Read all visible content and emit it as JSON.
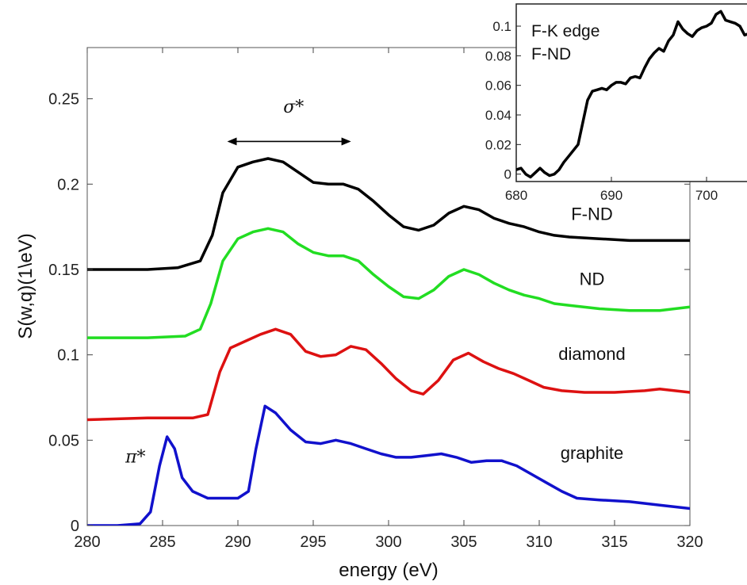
{
  "chart_data": [
    {
      "type": "line",
      "title": "",
      "xlabel": "energy (eV)",
      "ylabel": "S(w,q)(1\\eV)",
      "xlim": [
        280,
        320
      ],
      "ylim": [
        0,
        0.28
      ],
      "xticks": [
        280,
        285,
        290,
        295,
        300,
        305,
        310,
        315,
        320
      ],
      "yticks": [
        0,
        0.05,
        0.1,
        0.15,
        0.2,
        0.25
      ],
      "ytick_labels": [
        "0",
        "0.05",
        "0.1",
        "0.15",
        "0.2",
        "0.25"
      ],
      "grid": false,
      "series": [
        {
          "name": "F-ND",
          "color": "#000000",
          "points": [
            [
              280,
              0.15
            ],
            [
              284,
              0.15
            ],
            [
              286,
              0.151
            ],
            [
              287.5,
              0.155
            ],
            [
              288.3,
              0.17
            ],
            [
              289,
              0.195
            ],
            [
              290,
              0.21
            ],
            [
              291,
              0.213
            ],
            [
              292,
              0.215
            ],
            [
              293,
              0.213
            ],
            [
              294,
              0.207
            ],
            [
              295,
              0.201
            ],
            [
              296,
              0.2
            ],
            [
              297,
              0.2
            ],
            [
              298,
              0.197
            ],
            [
              299,
              0.19
            ],
            [
              300,
              0.182
            ],
            [
              301,
              0.175
            ],
            [
              302,
              0.173
            ],
            [
              303,
              0.176
            ],
            [
              304,
              0.183
            ],
            [
              305,
              0.187
            ],
            [
              306,
              0.185
            ],
            [
              307,
              0.18
            ],
            [
              308,
              0.177
            ],
            [
              309,
              0.175
            ],
            [
              310,
              0.172
            ],
            [
              311,
              0.17
            ],
            [
              312,
              0.169
            ],
            [
              314,
              0.168
            ],
            [
              316,
              0.167
            ],
            [
              318,
              0.167
            ],
            [
              320,
              0.167
            ]
          ]
        },
        {
          "name": "ND",
          "color": "#22dd22",
          "points": [
            [
              280,
              0.11
            ],
            [
              284,
              0.11
            ],
            [
              286.5,
              0.111
            ],
            [
              287.5,
              0.115
            ],
            [
              288.2,
              0.13
            ],
            [
              289,
              0.155
            ],
            [
              290,
              0.168
            ],
            [
              291,
              0.172
            ],
            [
              292,
              0.174
            ],
            [
              293,
              0.172
            ],
            [
              294,
              0.165
            ],
            [
              295,
              0.16
            ],
            [
              296,
              0.158
            ],
            [
              297,
              0.158
            ],
            [
              298,
              0.155
            ],
            [
              299,
              0.147
            ],
            [
              300,
              0.14
            ],
            [
              301,
              0.134
            ],
            [
              302,
              0.133
            ],
            [
              303,
              0.138
            ],
            [
              304,
              0.146
            ],
            [
              305,
              0.15
            ],
            [
              306,
              0.147
            ],
            [
              307,
              0.142
            ],
            [
              308,
              0.138
            ],
            [
              309,
              0.135
            ],
            [
              310,
              0.133
            ],
            [
              311,
              0.13
            ],
            [
              312,
              0.129
            ],
            [
              314,
              0.127
            ],
            [
              316,
              0.126
            ],
            [
              318,
              0.126
            ],
            [
              320,
              0.128
            ]
          ]
        },
        {
          "name": "diamond",
          "color": "#dd1111",
          "points": [
            [
              280,
              0.062
            ],
            [
              284,
              0.063
            ],
            [
              287,
              0.063
            ],
            [
              288,
              0.065
            ],
            [
              288.8,
              0.09
            ],
            [
              289.5,
              0.104
            ],
            [
              290.5,
              0.108
            ],
            [
              291.5,
              0.112
            ],
            [
              292.5,
              0.115
            ],
            [
              293.5,
              0.112
            ],
            [
              294.5,
              0.102
            ],
            [
              295.5,
              0.099
            ],
            [
              296.5,
              0.1
            ],
            [
              297.5,
              0.105
            ],
            [
              298.5,
              0.103
            ],
            [
              299.5,
              0.095
            ],
            [
              300.5,
              0.086
            ],
            [
              301.5,
              0.079
            ],
            [
              302.3,
              0.077
            ],
            [
              303.3,
              0.085
            ],
            [
              304.3,
              0.097
            ],
            [
              305.3,
              0.101
            ],
            [
              306.3,
              0.096
            ],
            [
              307.3,
              0.092
            ],
            [
              308.3,
              0.089
            ],
            [
              309.3,
              0.085
            ],
            [
              310.3,
              0.081
            ],
            [
              311.5,
              0.079
            ],
            [
              313,
              0.078
            ],
            [
              315,
              0.078
            ],
            [
              317,
              0.079
            ],
            [
              318,
              0.08
            ],
            [
              320,
              0.078
            ]
          ]
        },
        {
          "name": "graphite",
          "color": "#1111cc",
          "points": [
            [
              280,
              0
            ],
            [
              282,
              0
            ],
            [
              283.5,
              0.001
            ],
            [
              284.2,
              0.008
            ],
            [
              284.8,
              0.035
            ],
            [
              285.3,
              0.052
            ],
            [
              285.8,
              0.045
            ],
            [
              286.3,
              0.028
            ],
            [
              287,
              0.02
            ],
            [
              288,
              0.016
            ],
            [
              289,
              0.016
            ],
            [
              290,
              0.016
            ],
            [
              290.7,
              0.02
            ],
            [
              291.2,
              0.045
            ],
            [
              291.8,
              0.07
            ],
            [
              292.5,
              0.066
            ],
            [
              293.5,
              0.056
            ],
            [
              294.5,
              0.049
            ],
            [
              295.5,
              0.048
            ],
            [
              296.5,
              0.05
            ],
            [
              297.5,
              0.048
            ],
            [
              298.5,
              0.045
            ],
            [
              299.5,
              0.042
            ],
            [
              300.5,
              0.04
            ],
            [
              301.5,
              0.04
            ],
            [
              302.5,
              0.041
            ],
            [
              303.5,
              0.042
            ],
            [
              304.5,
              0.04
            ],
            [
              305.5,
              0.037
            ],
            [
              306.5,
              0.038
            ],
            [
              307.5,
              0.038
            ],
            [
              308.5,
              0.035
            ],
            [
              309.5,
              0.03
            ],
            [
              310.5,
              0.025
            ],
            [
              311.5,
              0.02
            ],
            [
              312.5,
              0.016
            ],
            [
              314,
              0.015
            ],
            [
              316,
              0.014
            ],
            [
              318,
              0.012
            ],
            [
              320,
              0.01
            ]
          ]
        }
      ],
      "series_labels": [
        {
          "text": "F-ND",
          "x": 313.5,
          "y": 0.179
        },
        {
          "text": "ND",
          "x": 313.5,
          "y": 0.141
        },
        {
          "text": "diamond",
          "x": 313.5,
          "y": 0.097
        },
        {
          "text": "graphite",
          "x": 313.5,
          "y": 0.039
        }
      ],
      "annotations": [
        {
          "text": "σ*",
          "x": 293.7,
          "y": 0.242
        },
        {
          "text": "π*",
          "x": 283.2,
          "y": 0.037
        }
      ],
      "arrow": {
        "x_start": 289.4,
        "x_end": 297.4,
        "y": 0.225
      }
    },
    {
      "type": "line",
      "title": "",
      "xlabel": "",
      "ylabel": "",
      "xlim": [
        680,
        705
      ],
      "ylim": [
        -0.005,
        0.115
      ],
      "xticks": [
        680,
        690,
        700
      ],
      "xtick_labels": [
        "680",
        "690",
        "700"
      ],
      "yticks": [
        0,
        0.02,
        0.04,
        0.06,
        0.08,
        0.1
      ],
      "ytick_labels": [
        "0",
        "0.02",
        "0.04",
        "0.06",
        "0.08",
        "0.1"
      ],
      "text_lines": [
        "F-K edge",
        "F-ND"
      ],
      "series": [
        {
          "name": "F-ND",
          "color": "#000000",
          "points": [
            [
              680,
              0.003
            ],
            [
              680.5,
              0.004
            ],
            [
              681,
              0
            ],
            [
              681.5,
              -0.002
            ],
            [
              682,
              0.001
            ],
            [
              682.5,
              0.004
            ],
            [
              683,
              0.001
            ],
            [
              683.5,
              -0.001
            ],
            [
              684,
              0
            ],
            [
              684.5,
              0.003
            ],
            [
              685,
              0.008
            ],
            [
              685.5,
              0.012
            ],
            [
              686,
              0.016
            ],
            [
              686.5,
              0.02
            ],
            [
              687,
              0.035
            ],
            [
              687.5,
              0.05
            ],
            [
              688,
              0.056
            ],
            [
              688.5,
              0.057
            ],
            [
              689,
              0.058
            ],
            [
              689.5,
              0.057
            ],
            [
              690,
              0.06
            ],
            [
              690.5,
              0.062
            ],
            [
              691,
              0.062
            ],
            [
              691.5,
              0.061
            ],
            [
              692,
              0.065
            ],
            [
              692.5,
              0.066
            ],
            [
              693,
              0.065
            ],
            [
              693.5,
              0.072
            ],
            [
              694,
              0.078
            ],
            [
              694.5,
              0.082
            ],
            [
              695,
              0.085
            ],
            [
              695.5,
              0.083
            ],
            [
              696,
              0.09
            ],
            [
              696.5,
              0.094
            ],
            [
              697,
              0.103
            ],
            [
              697.5,
              0.098
            ],
            [
              698,
              0.095
            ],
            [
              698.5,
              0.093
            ],
            [
              699,
              0.097
            ],
            [
              699.5,
              0.099
            ],
            [
              700,
              0.1
            ],
            [
              700.5,
              0.102
            ],
            [
              701,
              0.108
            ],
            [
              701.5,
              0.11
            ],
            [
              702,
              0.104
            ],
            [
              702.5,
              0.103
            ],
            [
              703,
              0.102
            ],
            [
              703.5,
              0.1
            ],
            [
              704,
              0.094
            ],
            [
              704.5,
              0.095
            ],
            [
              705,
              0.093
            ]
          ]
        }
      ]
    }
  ]
}
